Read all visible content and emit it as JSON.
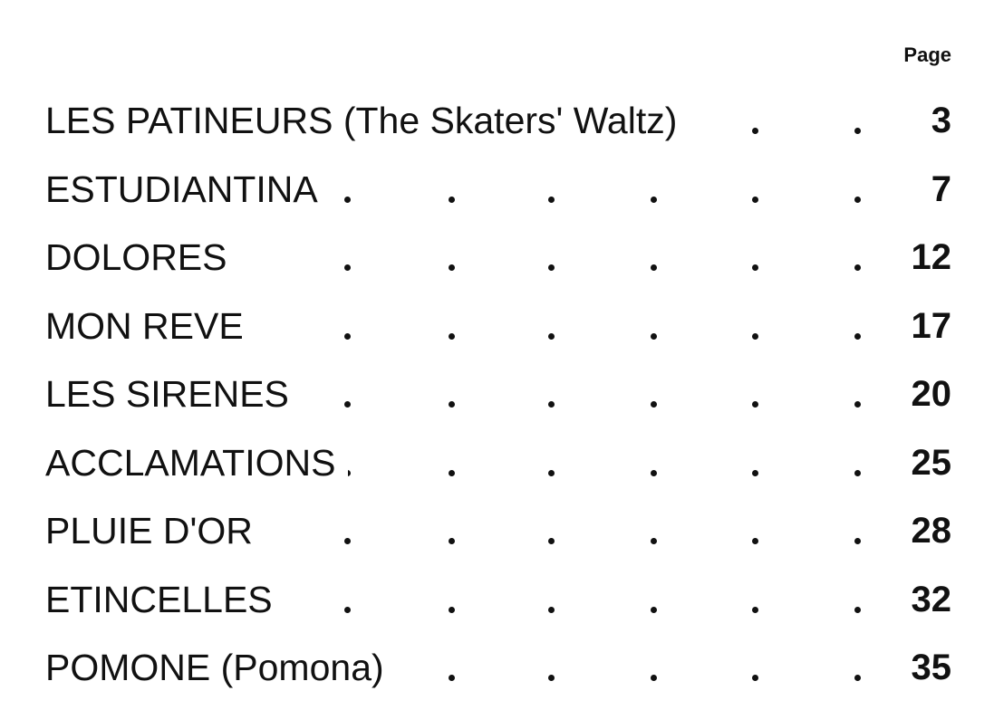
{
  "header": {
    "page_label": "Page"
  },
  "entries": [
    {
      "title": "LES PATINEURS (The Skaters' Waltz)",
      "page": "3"
    },
    {
      "title": "ESTUDIANTINA",
      "page": "7"
    },
    {
      "title": "DOLORES",
      "page": "12"
    },
    {
      "title": "MON REVE",
      "page": "17"
    },
    {
      "title": "LES SIRENES",
      "page": "20"
    },
    {
      "title": "ACCLAMATIONS",
      "page": "25"
    },
    {
      "title": "PLUIE D'OR",
      "page": "28"
    },
    {
      "title": "ETINCELLES",
      "page": "32"
    },
    {
      "title": "POMONE (Pomona)",
      "page": "35"
    }
  ]
}
